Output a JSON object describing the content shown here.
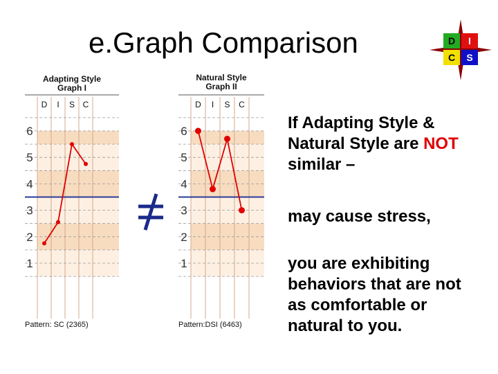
{
  "slide": {
    "title": "e.Graph Comparison"
  },
  "logo": {
    "cells": [
      {
        "letter": "D",
        "bg": "#22aa22",
        "fg": "#000000"
      },
      {
        "letter": "I",
        "bg": "#e01010",
        "fg": "#ffffff"
      },
      {
        "letter": "C",
        "bg": "#f2e000",
        "fg": "#000000"
      },
      {
        "letter": "S",
        "bg": "#1010c8",
        "fg": "#ffffff"
      }
    ]
  },
  "graph1": {
    "title_line1": "Adapting Style",
    "title_line2": "Graph I",
    "columns": [
      "D",
      "I",
      "S",
      "C"
    ],
    "scale": [
      "6",
      "5",
      "4",
      "3",
      "2",
      "1"
    ],
    "pattern": "Pattern: SC (2365)",
    "values": [
      1.75,
      2.55,
      5.5,
      4.75
    ]
  },
  "graph2": {
    "title_line1": "Natural Style",
    "title_line2": "Graph II",
    "columns": [
      "D",
      "I",
      "S",
      "C"
    ],
    "scale": [
      "6",
      "5",
      "4",
      "3",
      "2",
      "1"
    ],
    "pattern": "Pattern:DSI (6463)",
    "values": [
      6.0,
      3.8,
      5.7,
      3.0
    ]
  },
  "text": {
    "line1_part1": "If Adapting Style &",
    "line2_part1": "Natural Style are ",
    "line2_not": "NOT",
    "line3": "similar –",
    "stress": "may cause stress,",
    "ex1": "you are exhibiting",
    "ex2": "behaviors that are not",
    "ex3": "as comfortable or",
    "ex4": "natural to you."
  },
  "colors": {
    "accent_red": "#e00000",
    "band_orange": "#f8dcc0",
    "band_light": "#fdf0e3",
    "midline_blue": "#2a3a9a"
  }
}
